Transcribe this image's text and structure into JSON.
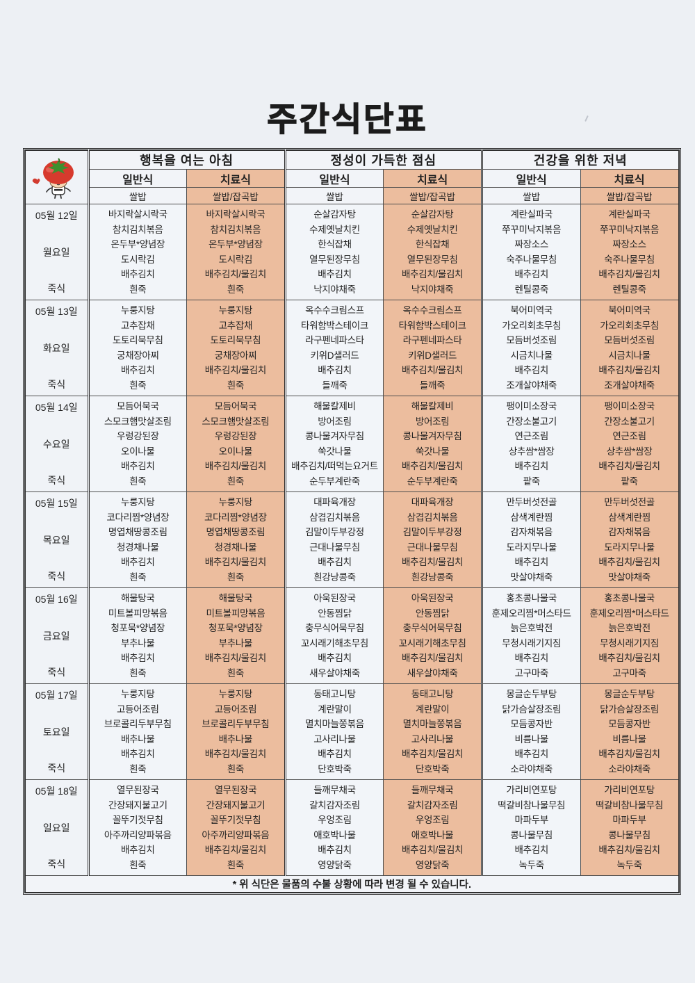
{
  "title": "주간식단표",
  "header": {
    "meal_periods": [
      "행복을 여는 아침",
      "정성이 가득한 점심",
      "건강을 위한 저녁"
    ],
    "type_regular": "일반식",
    "type_therapy": "치료식",
    "rice_regular": "쌀밥",
    "rice_therapy": "쌀밥/잡곡밥",
    "mascot": "tomato-character-icon"
  },
  "colors": {
    "therapy_bg": "#ecbd9e",
    "regular_bg": "#f2f5f9",
    "page_bg": "#edf0f4",
    "border": "#4c4c4c"
  },
  "days": [
    {
      "date": "05월 12일",
      "weekday": "월요일",
      "porridge_label": "죽식",
      "breakfast_regular": [
        "바지락살시락국",
        "참치김치볶음",
        "온두부*양념장",
        "도시락김",
        "배추김치",
        "흰죽"
      ],
      "breakfast_therapy": [
        "바지락살시락국",
        "참치김치볶음",
        "온두부*양념장",
        "도시락김",
        "배추김치/물김치",
        "흰죽"
      ],
      "lunch_regular": [
        "순살감자탕",
        "수제옛날치킨",
        "한식잡채",
        "열무된장무침",
        "배추김치",
        "낙지야채죽"
      ],
      "lunch_therapy": [
        "순살감자탕",
        "수제옛날치킨",
        "한식잡채",
        "열무된장무침",
        "배추김치/물김치",
        "낙지야채죽"
      ],
      "dinner_regular": [
        "계란실파국",
        "쭈꾸미낙지볶음",
        "짜장소스",
        "숙주나물무침",
        "배추김치",
        "렌틸콩죽"
      ],
      "dinner_therapy": [
        "계란실파국",
        "쭈꾸미낙지볶음",
        "짜장소스",
        "숙주나물무침",
        "배추김치/물김치",
        "렌틸콩죽"
      ]
    },
    {
      "date": "05월 13일",
      "weekday": "화요일",
      "porridge_label": "죽식",
      "breakfast_regular": [
        "누룽지탕",
        "고추잡채",
        "도토리묵무침",
        "궁채장아찌",
        "배추김치",
        "흰죽"
      ],
      "breakfast_therapy": [
        "누룽지탕",
        "고추잡채",
        "도토리묵무침",
        "궁채장아찌",
        "배추김치/물김치",
        "흰죽"
      ],
      "lunch_regular": [
        "옥수수크림스프",
        "타워함박스테이크",
        "라구펜네파스타",
        "키위D샐러드",
        "배추김치",
        "들깨죽"
      ],
      "lunch_therapy": [
        "옥수수크림스프",
        "타워함박스테이크",
        "라구펜네파스타",
        "키위D샐러드",
        "배추김치/물김치",
        "들깨죽"
      ],
      "dinner_regular": [
        "북어미역국",
        "가오리회초무침",
        "모듬버섯조림",
        "시금치나물",
        "배추김치",
        "조개살야채죽"
      ],
      "dinner_therapy": [
        "북어미역국",
        "가오리회초무침",
        "모듬버섯조림",
        "시금치나물",
        "배추김치/물김치",
        "조개살야채죽"
      ]
    },
    {
      "date": "05월 14일",
      "weekday": "수요일",
      "porridge_label": "죽식",
      "breakfast_regular": [
        "모듬어묵국",
        "스모크햄맛살조림",
        "우렁강된장",
        "오이나물",
        "배추김치",
        "흰죽"
      ],
      "breakfast_therapy": [
        "모듬어묵국",
        "스모크햄맛살조림",
        "우렁강된장",
        "오이나물",
        "배추김치/물김치",
        "흰죽"
      ],
      "lunch_regular": [
        "해물칼제비",
        "방어조림",
        "콩나물겨자무침",
        "쑥갓나물",
        "배추김치/떠먹는요거트",
        "순두부계란죽"
      ],
      "lunch_therapy": [
        "해물칼제비",
        "방어조림",
        "콩나물겨자무침",
        "쑥갓나물",
        "배추김치/물김치",
        "순두부계란죽"
      ],
      "dinner_regular": [
        "팽이미소장국",
        "간장소불고기",
        "연근조림",
        "상추쌈*쌈장",
        "배추김치",
        "팥죽"
      ],
      "dinner_therapy": [
        "팽이미소장국",
        "간장소불고기",
        "연근조림",
        "상추쌈*쌈장",
        "배추김치/물김치",
        "팥죽"
      ]
    },
    {
      "date": "05월 15일",
      "weekday": "목요일",
      "porridge_label": "죽식",
      "breakfast_regular": [
        "누룽지탕",
        "코다리찜*양념장",
        "명엽채땅콩조림",
        "청경채나물",
        "배추김치",
        "흰죽"
      ],
      "breakfast_therapy": [
        "누룽지탕",
        "코다리찜*양념장",
        "명엽채땅콩조림",
        "청경채나물",
        "배추김치/물김치",
        "흰죽"
      ],
      "lunch_regular": [
        "대파육개장",
        "삼겹김치볶음",
        "김말이두부강정",
        "근대나물무침",
        "배추김치",
        "흰강낭콩죽"
      ],
      "lunch_therapy": [
        "대파육개장",
        "삼겹김치볶음",
        "김말이두부강정",
        "근대나물무침",
        "배추김치/물김치",
        "흰강낭콩죽"
      ],
      "dinner_regular": [
        "만두버섯전골",
        "삼색계란찜",
        "감자채볶음",
        "도라지무나물",
        "배추김치",
        "맛살야채죽"
      ],
      "dinner_therapy": [
        "만두버섯전골",
        "삼색계란찜",
        "감자채볶음",
        "도라지무나물",
        "배추김치/물김치",
        "맛살야채죽"
      ]
    },
    {
      "date": "05월 16일",
      "weekday": "금요일",
      "porridge_label": "죽식",
      "breakfast_regular": [
        "해물탕국",
        "미트볼피망볶음",
        "청포묵*양념장",
        "부추나물",
        "배추김치",
        "흰죽"
      ],
      "breakfast_therapy": [
        "해물탕국",
        "미트볼피망볶음",
        "청포묵*양념장",
        "부추나물",
        "배추김치/물김치",
        "흰죽"
      ],
      "lunch_regular": [
        "아욱된장국",
        "안동찜닭",
        "충무식어묵무침",
        "꼬시래기해초무침",
        "배추김치",
        "새우살야채죽"
      ],
      "lunch_therapy": [
        "아욱된장국",
        "안동찜닭",
        "충무식어묵무침",
        "꼬시래기해초무침",
        "배추김치/물김치",
        "새우살야채죽"
      ],
      "dinner_regular": [
        "홍초콩나물국",
        "훈제오리찜*머스타드",
        "늙은호박전",
        "무청시래기지짐",
        "배추김치",
        "고구마죽"
      ],
      "dinner_therapy": [
        "홍초콩나물국",
        "훈제오리찜*머스타드",
        "늙은호박전",
        "무청시래기지짐",
        "배추김치/물김치",
        "고구마죽"
      ]
    },
    {
      "date": "05월 17일",
      "weekday": "토요일",
      "porridge_label": "죽식",
      "breakfast_regular": [
        "누룽지탕",
        "고등어조림",
        "브로콜리두부무침",
        "배추나물",
        "배추김치",
        "흰죽"
      ],
      "breakfast_therapy": [
        "누룽지탕",
        "고등어조림",
        "브로콜리두부무침",
        "배추나물",
        "배추김치/물김치",
        "흰죽"
      ],
      "lunch_regular": [
        "동태고니탕",
        "계란말이",
        "멸치마늘쫑볶음",
        "고사리나물",
        "배추김치",
        "단호박죽"
      ],
      "lunch_therapy": [
        "동태고니탕",
        "계란말이",
        "멸치마늘쫑볶음",
        "고사리나물",
        "배추김치/물김치",
        "단호박죽"
      ],
      "dinner_regular": [
        "몽글순두부탕",
        "닭가슴살장조림",
        "모듬콩자반",
        "비름나물",
        "배추김치",
        "소라야채죽"
      ],
      "dinner_therapy": [
        "몽글순두부탕",
        "닭가슴살장조림",
        "모듬콩자반",
        "비름나물",
        "배추김치/물김치",
        "소라야채죽"
      ]
    },
    {
      "date": "05월 18일",
      "weekday": "일요일",
      "porridge_label": "죽식",
      "breakfast_regular": [
        "열무된장국",
        "간장돼지불고기",
        "꼴뚜기젓무침",
        "아주까리양파볶음",
        "배추김치",
        "흰죽"
      ],
      "breakfast_therapy": [
        "열무된장국",
        "간장돼지불고기",
        "꼴뚜기젓무침",
        "아주까리양파볶음",
        "배추김치/물김치",
        "흰죽"
      ],
      "lunch_regular": [
        "들깨무채국",
        "갈치감자조림",
        "우엉조림",
        "애호박나물",
        "배추김치",
        "영양닭죽"
      ],
      "lunch_therapy": [
        "들깨무채국",
        "갈치감자조림",
        "우엉조림",
        "애호박나물",
        "배추김치/물김치",
        "영양닭죽"
      ],
      "dinner_regular": [
        "가리비연포탕",
        "떡갈비참나물무침",
        "마파두부",
        "콩나물무침",
        "배추김치",
        "녹두죽"
      ],
      "dinner_therapy": [
        "가리비연포탕",
        "떡갈비참나물무침",
        "마파두부",
        "콩나물무침",
        "배추김치/물김치",
        "녹두죽"
      ]
    }
  ],
  "footer": {
    "note": "* 위 식단은 물품의 수불 상황에 따라 변경 될 수 있습니다."
  }
}
